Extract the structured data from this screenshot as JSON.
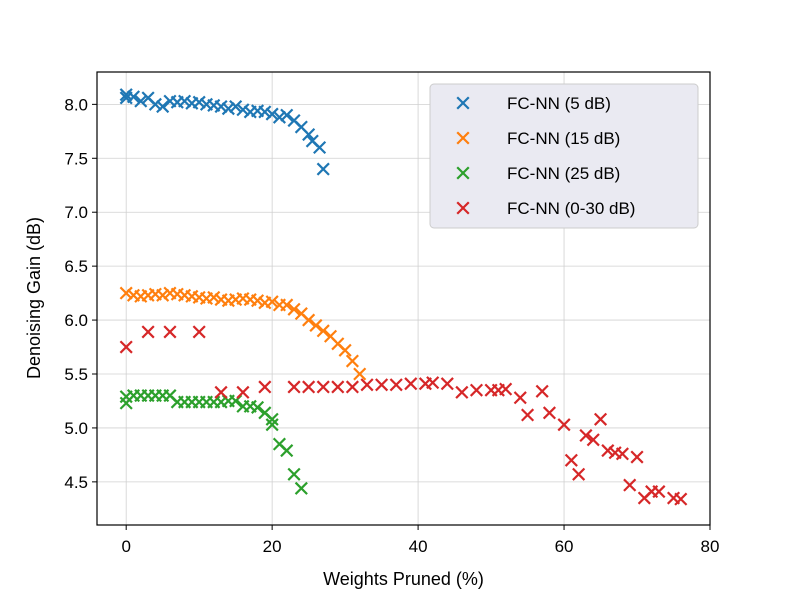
{
  "chart_data": {
    "type": "scatter",
    "title": "",
    "xlabel": "Weights Pruned (%)",
    "ylabel": "Denoising Gain (dB)",
    "xlim": [
      -4,
      80
    ],
    "ylim": [
      4.1,
      8.3
    ],
    "xticks": [
      0,
      20,
      40,
      60,
      80
    ],
    "yticks": [
      4.5,
      5.0,
      5.5,
      6.0,
      6.5,
      7.0,
      7.5,
      8.0
    ],
    "xtick_labels": [
      "0",
      "20",
      "40",
      "60",
      "80"
    ],
    "ytick_labels": [
      "4.5",
      "5.0",
      "5.5",
      "6.0",
      "6.5",
      "7.0",
      "7.5",
      "8.0"
    ],
    "grid": true,
    "legend_position": "top-right",
    "marker": "x",
    "series": [
      {
        "name": "FC-NN (5 dB)",
        "color": "#1f77b4",
        "points": [
          [
            0,
            8.09
          ],
          [
            0,
            8.06
          ],
          [
            1,
            8.07
          ],
          [
            2,
            8.03
          ],
          [
            3,
            8.06
          ],
          [
            4,
            8.0
          ],
          [
            5,
            7.98
          ],
          [
            6,
            8.03
          ],
          [
            7,
            8.02
          ],
          [
            8,
            8.03
          ],
          [
            9,
            8.01
          ],
          [
            10,
            8.02
          ],
          [
            11,
            8.0
          ],
          [
            12,
            7.99
          ],
          [
            13,
            7.98
          ],
          [
            14,
            7.96
          ],
          [
            15,
            7.98
          ],
          [
            16,
            7.95
          ],
          [
            17,
            7.93
          ],
          [
            18,
            7.94
          ],
          [
            19,
            7.93
          ],
          [
            20,
            7.91
          ],
          [
            21,
            7.88
          ],
          [
            22,
            7.9
          ],
          [
            23,
            7.85
          ],
          [
            24,
            7.79
          ],
          [
            25,
            7.72
          ],
          [
            25.5,
            7.66
          ],
          [
            26.5,
            7.6
          ],
          [
            27,
            7.4
          ]
        ]
      },
      {
        "name": "FC-NN (15 dB)",
        "color": "#ff7f0e",
        "points": [
          [
            0,
            6.25
          ],
          [
            1,
            6.23
          ],
          [
            2,
            6.22
          ],
          [
            3,
            6.23
          ],
          [
            4,
            6.24
          ],
          [
            5,
            6.23
          ],
          [
            6,
            6.25
          ],
          [
            7,
            6.24
          ],
          [
            8,
            6.23
          ],
          [
            9,
            6.22
          ],
          [
            10,
            6.21
          ],
          [
            11,
            6.2
          ],
          [
            12,
            6.21
          ],
          [
            13,
            6.19
          ],
          [
            14,
            6.18
          ],
          [
            15,
            6.19
          ],
          [
            16,
            6.2
          ],
          [
            17,
            6.19
          ],
          [
            18,
            6.18
          ],
          [
            19,
            6.16
          ],
          [
            20,
            6.17
          ],
          [
            21,
            6.14
          ],
          [
            22,
            6.14
          ],
          [
            23,
            6.1
          ],
          [
            24,
            6.06
          ],
          [
            25,
            6.0
          ],
          [
            26,
            5.95
          ],
          [
            27,
            5.9
          ],
          [
            28,
            5.85
          ],
          [
            29,
            5.78
          ],
          [
            30,
            5.72
          ],
          [
            31,
            5.62
          ],
          [
            32,
            5.5
          ]
        ]
      },
      {
        "name": "FC-NN (25 dB)",
        "color": "#2ca02c",
        "points": [
          [
            0,
            5.29
          ],
          [
            0,
            5.23
          ],
          [
            1,
            5.3
          ],
          [
            2,
            5.3
          ],
          [
            3,
            5.3
          ],
          [
            4,
            5.3
          ],
          [
            5,
            5.3
          ],
          [
            6,
            5.3
          ],
          [
            7,
            5.24
          ],
          [
            8,
            5.24
          ],
          [
            9,
            5.24
          ],
          [
            10,
            5.24
          ],
          [
            11,
            5.24
          ],
          [
            12,
            5.24
          ],
          [
            13,
            5.24
          ],
          [
            14,
            5.25
          ],
          [
            15,
            5.25
          ],
          [
            16,
            5.2
          ],
          [
            17,
            5.2
          ],
          [
            18,
            5.19
          ],
          [
            19,
            5.14
          ],
          [
            20,
            5.08
          ],
          [
            20,
            5.03
          ],
          [
            21,
            4.85
          ],
          [
            22,
            4.79
          ],
          [
            23,
            4.57
          ],
          [
            24,
            4.44
          ]
        ]
      },
      {
        "name": "FC-NN (0-30 dB)",
        "color": "#d62728",
        "points": [
          [
            0,
            5.75
          ],
          [
            3,
            5.89
          ],
          [
            6,
            5.89
          ],
          [
            10,
            5.89
          ],
          [
            13,
            5.33
          ],
          [
            16,
            5.33
          ],
          [
            19,
            5.38
          ],
          [
            23,
            5.38
          ],
          [
            25,
            5.38
          ],
          [
            27,
            5.38
          ],
          [
            29,
            5.38
          ],
          [
            31,
            5.38
          ],
          [
            33,
            5.4
          ],
          [
            35,
            5.4
          ],
          [
            37,
            5.4
          ],
          [
            39,
            5.41
          ],
          [
            41,
            5.41
          ],
          [
            42,
            5.42
          ],
          [
            44,
            5.41
          ],
          [
            46,
            5.33
          ],
          [
            48,
            5.35
          ],
          [
            50,
            5.35
          ],
          [
            51,
            5.35
          ],
          [
            52,
            5.36
          ],
          [
            54,
            5.28
          ],
          [
            55,
            5.12
          ],
          [
            57,
            5.34
          ],
          [
            58,
            5.14
          ],
          [
            60,
            5.03
          ],
          [
            61,
            4.7
          ],
          [
            62,
            4.57
          ],
          [
            63,
            4.93
          ],
          [
            64,
            4.89
          ],
          [
            65,
            5.08
          ],
          [
            66,
            4.79
          ],
          [
            67,
            4.77
          ],
          [
            68,
            4.76
          ],
          [
            69,
            4.47
          ],
          [
            70,
            4.73
          ],
          [
            71,
            4.35
          ],
          [
            72,
            4.41
          ],
          [
            73,
            4.41
          ],
          [
            75,
            4.35
          ],
          [
            76,
            4.34
          ]
        ]
      }
    ]
  }
}
